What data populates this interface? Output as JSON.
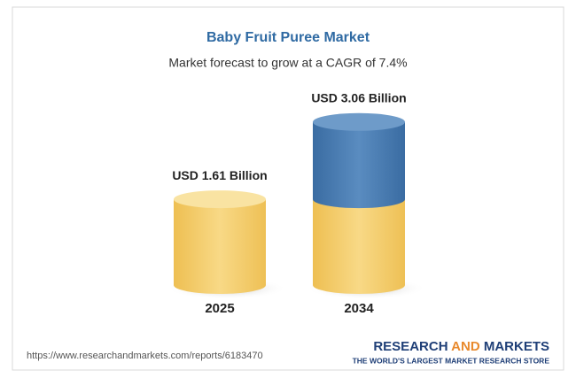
{
  "chart_data": {
    "type": "cylinder",
    "title": "Baby Fruit Puree Market",
    "subtitle": "Market forecast to grow at a CAGR of 7.4%",
    "categories": [
      "2025",
      "2034"
    ],
    "values": [
      1.61,
      3.06
    ],
    "value_labels": [
      "USD 1.61 Billion",
      "USD 3.06 Billion"
    ],
    "color": "#f2c75c",
    "growth_color": "#3f74aa"
  },
  "source": "https://www.researchandmarkets.com/reports/6183470",
  "brand": {
    "parts": [
      "RESEARCH",
      "AND",
      "MARKETS"
    ],
    "tagline": "THE WORLD'S LARGEST MARKET RESEARCH STORE"
  }
}
